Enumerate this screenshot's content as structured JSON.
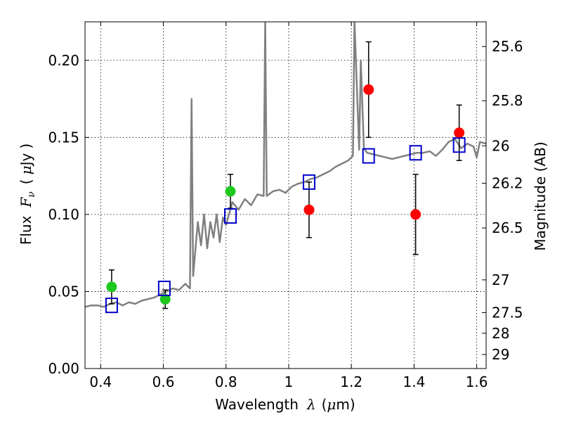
{
  "chart_data": {
    "type": "scatter",
    "title": "",
    "xlabel": {
      "text": "Wavelength",
      "symbol": "λ",
      "unit_open": "(",
      "unit_mu": "μ",
      "unit_rest": "m)"
    },
    "ylabel": {
      "text": "Flux",
      "symbol": "F",
      "sub": "ν",
      "unit_open": "(",
      "unit_mu": "μ",
      "unit_rest": "Jy",
      "unit_close": ")"
    },
    "y2label": "Magnitude (AB)",
    "xlim": [
      0.35,
      1.63
    ],
    "ylim": [
      0.0,
      0.225
    ],
    "grid": true,
    "x_ticks": [
      0.4,
      0.6,
      0.8,
      1.0,
      1.2,
      1.4,
      1.6
    ],
    "x_tick_labels": [
      "0.4",
      "0.6",
      "0.8",
      "1",
      "1.2",
      "1.4",
      "1.6"
    ],
    "y_ticks": [
      0.0,
      0.05,
      0.1,
      0.15,
      0.2
    ],
    "y_tick_labels": [
      "0.00",
      "0.05",
      "0.10",
      "0.15",
      "0.20"
    ],
    "y2_ticks": [
      25.6,
      25.8,
      26,
      26.2,
      26.5,
      27,
      27.5,
      28,
      29
    ],
    "y2_tick_labels": [
      "25.6",
      "25.8",
      "26",
      "26.2",
      "26.5",
      "27",
      "27.5",
      "28",
      "29"
    ],
    "colors": {
      "green": "#1ec81e",
      "red": "#ff0000",
      "blue": "#0000cc",
      "spectrum": "#808080"
    },
    "series": [
      {
        "marker": "circle-green",
        "points": [
          {
            "x": 0.435,
            "y": 0.053,
            "err": 0.011
          },
          {
            "x": 0.606,
            "y": 0.045,
            "err": 0.006
          },
          {
            "x": 0.814,
            "y": 0.115,
            "err": 0.011
          }
        ]
      },
      {
        "marker": "circle-red",
        "points": [
          {
            "x": 1.065,
            "y": 0.103,
            "err": 0.018
          },
          {
            "x": 1.255,
            "y": 0.181,
            "err": 0.031
          },
          {
            "x": 1.405,
            "y": 0.1,
            "err": 0.026
          },
          {
            "x": 1.544,
            "y": 0.153,
            "err": 0.018
          }
        ]
      },
      {
        "marker": "square-blue",
        "points": [
          {
            "x": 0.435,
            "y": 0.041
          },
          {
            "x": 0.603,
            "y": 0.052
          },
          {
            "x": 0.814,
            "y": 0.099
          },
          {
            "x": 1.065,
            "y": 0.121
          },
          {
            "x": 1.255,
            "y": 0.138
          },
          {
            "x": 1.405,
            "y": 0.14
          },
          {
            "x": 1.544,
            "y": 0.145
          }
        ]
      },
      {
        "marker": "line-gray",
        "spectrum": [
          [
            0.35,
            0.04
          ],
          [
            0.37,
            0.041
          ],
          [
            0.39,
            0.041
          ],
          [
            0.41,
            0.04
          ],
          [
            0.43,
            0.042
          ],
          [
            0.45,
            0.043
          ],
          [
            0.47,
            0.041
          ],
          [
            0.49,
            0.043
          ],
          [
            0.51,
            0.042
          ],
          [
            0.53,
            0.044
          ],
          [
            0.55,
            0.045
          ],
          [
            0.57,
            0.046
          ],
          [
            0.59,
            0.048
          ],
          [
            0.61,
            0.05
          ],
          [
            0.63,
            0.052
          ],
          [
            0.65,
            0.051
          ],
          [
            0.67,
            0.055
          ],
          [
            0.685,
            0.052
          ],
          [
            0.69,
            0.175
          ],
          [
            0.695,
            0.06
          ],
          [
            0.71,
            0.095
          ],
          [
            0.72,
            0.08
          ],
          [
            0.73,
            0.1
          ],
          [
            0.74,
            0.078
          ],
          [
            0.75,
            0.095
          ],
          [
            0.76,
            0.085
          ],
          [
            0.77,
            0.1
          ],
          [
            0.78,
            0.082
          ],
          [
            0.79,
            0.098
          ],
          [
            0.8,
            0.093
          ],
          [
            0.82,
            0.108
          ],
          [
            0.84,
            0.103
          ],
          [
            0.86,
            0.11
          ],
          [
            0.88,
            0.106
          ],
          [
            0.9,
            0.113
          ],
          [
            0.92,
            0.112
          ],
          [
            0.925,
            0.225
          ],
          [
            0.93,
            0.112
          ],
          [
            0.95,
            0.115
          ],
          [
            0.97,
            0.116
          ],
          [
            0.99,
            0.114
          ],
          [
            1.01,
            0.118
          ],
          [
            1.03,
            0.12
          ],
          [
            1.05,
            0.121
          ],
          [
            1.07,
            0.123
          ],
          [
            1.09,
            0.124
          ],
          [
            1.11,
            0.126
          ],
          [
            1.13,
            0.128
          ],
          [
            1.15,
            0.131
          ],
          [
            1.17,
            0.133
          ],
          [
            1.19,
            0.135
          ],
          [
            1.205,
            0.138
          ],
          [
            1.21,
            0.225
          ],
          [
            1.225,
            0.142
          ],
          [
            1.23,
            0.2
          ],
          [
            1.24,
            0.143
          ],
          [
            1.25,
            0.14
          ],
          [
            1.27,
            0.139
          ],
          [
            1.29,
            0.138
          ],
          [
            1.31,
            0.137
          ],
          [
            1.33,
            0.136
          ],
          [
            1.35,
            0.137
          ],
          [
            1.37,
            0.138
          ],
          [
            1.39,
            0.139
          ],
          [
            1.41,
            0.14
          ],
          [
            1.43,
            0.14
          ],
          [
            1.45,
            0.141
          ],
          [
            1.47,
            0.138
          ],
          [
            1.49,
            0.142
          ],
          [
            1.51,
            0.147
          ],
          [
            1.53,
            0.149
          ],
          [
            1.55,
            0.143
          ],
          [
            1.57,
            0.146
          ],
          [
            1.59,
            0.144
          ],
          [
            1.6,
            0.137
          ],
          [
            1.61,
            0.147
          ],
          [
            1.63,
            0.146
          ]
        ]
      }
    ]
  }
}
